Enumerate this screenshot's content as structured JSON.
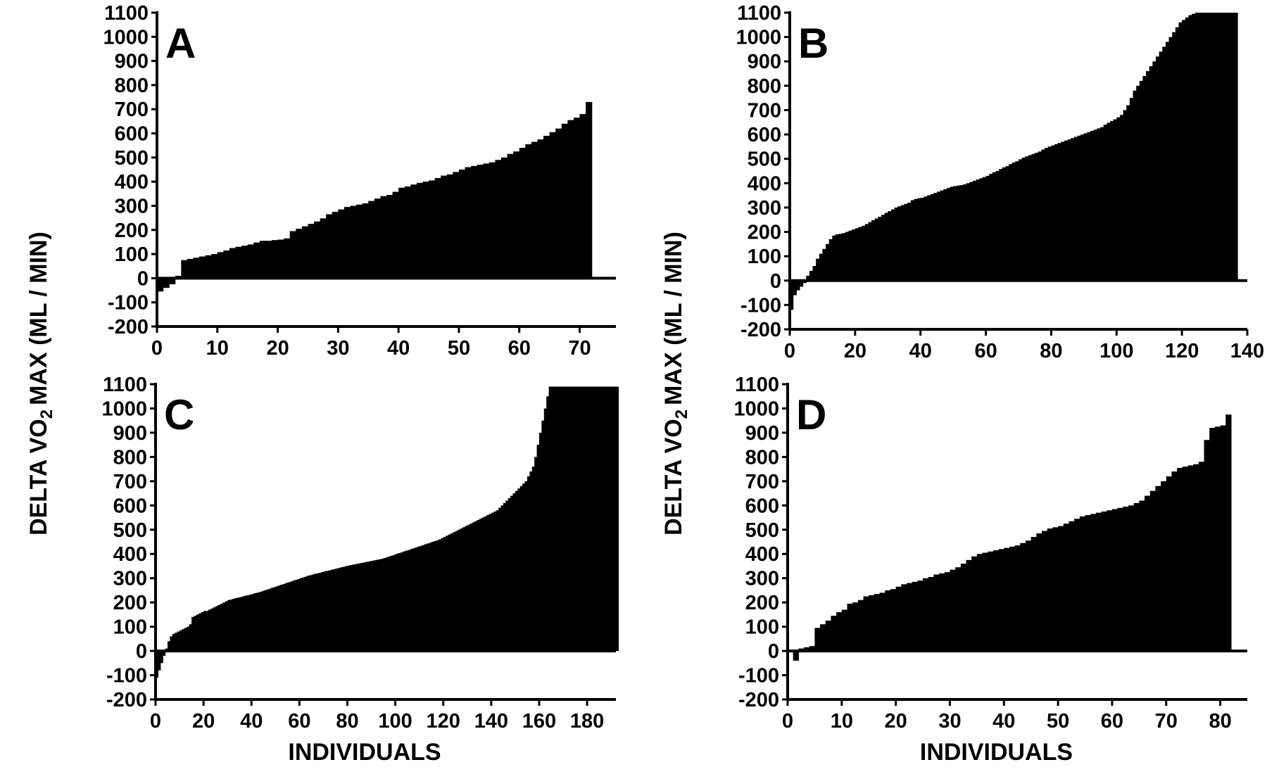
{
  "figure": {
    "ylabel_prefix": "DELTA V",
    "ylabel_sub": "2",
    "ylabel_suffix": "MAX (ML / MIN)",
    "ylabel_o": "O",
    "xlabel": "INDIVIDUALS"
  },
  "chart_data": [
    {
      "type": "bar",
      "panel": "A",
      "letter": "A",
      "ylim": [
        -200,
        1100
      ],
      "yticks": [
        -200,
        -100,
        0,
        100,
        200,
        300,
        400,
        500,
        600,
        700,
        800,
        900,
        1000,
        1100
      ],
      "xlim": [
        0,
        76
      ],
      "xticks": [
        0,
        10,
        20,
        30,
        40,
        50,
        60,
        70
      ],
      "xlabel": "",
      "ylabel": "DELTA VO2 MAX (ML / MIN)",
      "n": 72,
      "values": [
        -55,
        -40,
        -25,
        10,
        75,
        80,
        85,
        90,
        95,
        100,
        108,
        115,
        125,
        130,
        135,
        140,
        148,
        155,
        155,
        158,
        160,
        165,
        195,
        205,
        215,
        225,
        235,
        248,
        265,
        275,
        285,
        295,
        300,
        305,
        310,
        320,
        330,
        340,
        345,
        358,
        375,
        380,
        388,
        395,
        400,
        405,
        415,
        425,
        430,
        440,
        450,
        460,
        465,
        470,
        475,
        480,
        490,
        500,
        515,
        525,
        540,
        555,
        565,
        575,
        590,
        605,
        620,
        640,
        655,
        665,
        680,
        730
      ]
    },
    {
      "type": "bar",
      "panel": "B",
      "letter": "B",
      "ylim": [
        -200,
        1100
      ],
      "yticks": [
        -200,
        -100,
        0,
        100,
        200,
        300,
        400,
        500,
        600,
        700,
        800,
        900,
        1000,
        1100
      ],
      "xlim": [
        0,
        140
      ],
      "xticks": [
        0,
        20,
        40,
        60,
        80,
        100,
        120,
        140
      ],
      "xlabel": "",
      "ylabel": "DELTA VO2 MAX (ML / MIN)",
      "n": 137,
      "values": [
        -120,
        -60,
        -40,
        -25,
        -10,
        20,
        40,
        60,
        90,
        110,
        130,
        150,
        170,
        185,
        190,
        192,
        195,
        200,
        205,
        210,
        215,
        220,
        225,
        232,
        240,
        248,
        255,
        262,
        270,
        278,
        285,
        292,
        300,
        305,
        310,
        315,
        320,
        330,
        335,
        338,
        340,
        345,
        350,
        355,
        360,
        365,
        370,
        375,
        380,
        385,
        388,
        390,
        392,
        395,
        400,
        405,
        410,
        415,
        420,
        425,
        430,
        438,
        445,
        450,
        458,
        465,
        470,
        478,
        485,
        490,
        498,
        505,
        510,
        515,
        520,
        525,
        530,
        538,
        545,
        550,
        555,
        560,
        565,
        570,
        575,
        580,
        585,
        590,
        595,
        600,
        605,
        610,
        615,
        620,
        625,
        630,
        640,
        648,
        655,
        662,
        670,
        680,
        700,
        720,
        750,
        780,
        800,
        820,
        840,
        860,
        880,
        900,
        920,
        940,
        960,
        980,
        1000,
        1020,
        1040,
        1060,
        1070,
        1080,
        1090,
        1095,
        1100,
        1100,
        1100,
        1100,
        1100,
        1100,
        1100,
        1100,
        1100,
        1100,
        1100,
        1100,
        1100
      ]
    },
    {
      "type": "bar",
      "panel": "C",
      "letter": "C",
      "ylim": [
        -200,
        1100
      ],
      "yticks": [
        -200,
        -100,
        0,
        100,
        200,
        300,
        400,
        500,
        600,
        700,
        800,
        900,
        1000,
        1100
      ],
      "xlim": [
        0,
        192
      ],
      "xticks": [
        0,
        20,
        40,
        60,
        80,
        100,
        120,
        140,
        160,
        180
      ],
      "xlabel": "INDIVIDUALS",
      "ylabel": "DELTA VO2 MAX (ML / MIN)",
      "n": 189,
      "values": [
        -110,
        -80,
        -50,
        -20,
        10,
        40,
        60,
        70,
        75,
        80,
        85,
        90,
        95,
        100,
        110,
        140,
        145,
        150,
        155,
        160,
        165,
        165,
        170,
        175,
        180,
        185,
        190,
        195,
        200,
        205,
        210,
        212,
        215,
        218,
        220,
        222,
        225,
        228,
        230,
        232,
        235,
        238,
        240,
        243,
        246,
        250,
        253,
        256,
        260,
        263,
        266,
        270,
        273,
        276,
        280,
        283,
        286,
        290,
        293,
        296,
        300,
        303,
        306,
        310,
        312,
        315,
        318,
        320,
        322,
        325,
        328,
        330,
        332,
        335,
        337,
        340,
        342,
        345,
        347,
        350,
        352,
        354,
        356,
        358,
        360,
        362,
        364,
        366,
        368,
        370,
        372,
        374,
        376,
        378,
        380,
        383,
        386,
        390,
        393,
        396,
        400,
        403,
        406,
        410,
        413,
        416,
        420,
        423,
        426,
        430,
        433,
        436,
        440,
        443,
        446,
        450,
        453,
        456,
        460,
        465,
        470,
        475,
        480,
        485,
        490,
        495,
        500,
        505,
        510,
        515,
        520,
        525,
        530,
        535,
        540,
        545,
        550,
        555,
        560,
        565,
        570,
        575,
        580,
        590,
        600,
        610,
        620,
        630,
        640,
        650,
        660,
        670,
        680,
        690,
        700,
        720,
        740,
        760,
        800,
        850,
        900,
        950,
        1000,
        1050,
        1090,
        1090,
        1090,
        1090,
        1090,
        1090,
        1090,
        1090,
        1090,
        1090,
        1090,
        1090,
        1090,
        1090,
        1090,
        1090,
        1090,
        1090,
        1090,
        1090,
        1090,
        1090,
        1090,
        1090,
        1090,
        1090,
        1090,
        1090,
        1090
      ]
    },
    {
      "type": "bar",
      "panel": "D",
      "letter": "D",
      "ylim": [
        -200,
        1100
      ],
      "yticks": [
        -200,
        -100,
        0,
        100,
        200,
        300,
        400,
        500,
        600,
        700,
        800,
        900,
        1000,
        1100
      ],
      "xlim": [
        0,
        85
      ],
      "xticks": [
        0,
        10,
        20,
        30,
        40,
        50,
        60,
        70,
        80
      ],
      "xlabel": "INDIVIDUALS",
      "ylabel": "DELTA VO2 MAX (ML / MIN)",
      "n": 82,
      "values": [
        5,
        -40,
        10,
        15,
        20,
        95,
        110,
        125,
        145,
        160,
        170,
        195,
        200,
        210,
        225,
        230,
        235,
        240,
        250,
        255,
        265,
        275,
        280,
        285,
        290,
        300,
        305,
        315,
        320,
        325,
        335,
        345,
        360,
        375,
        390,
        400,
        405,
        410,
        415,
        420,
        425,
        430,
        435,
        445,
        455,
        470,
        485,
        495,
        505,
        510,
        515,
        525,
        535,
        545,
        555,
        560,
        565,
        570,
        575,
        580,
        585,
        590,
        595,
        600,
        610,
        620,
        640,
        660,
        680,
        700,
        720,
        740,
        755,
        760,
        765,
        770,
        780,
        870,
        920,
        925,
        930,
        975
      ]
    }
  ]
}
